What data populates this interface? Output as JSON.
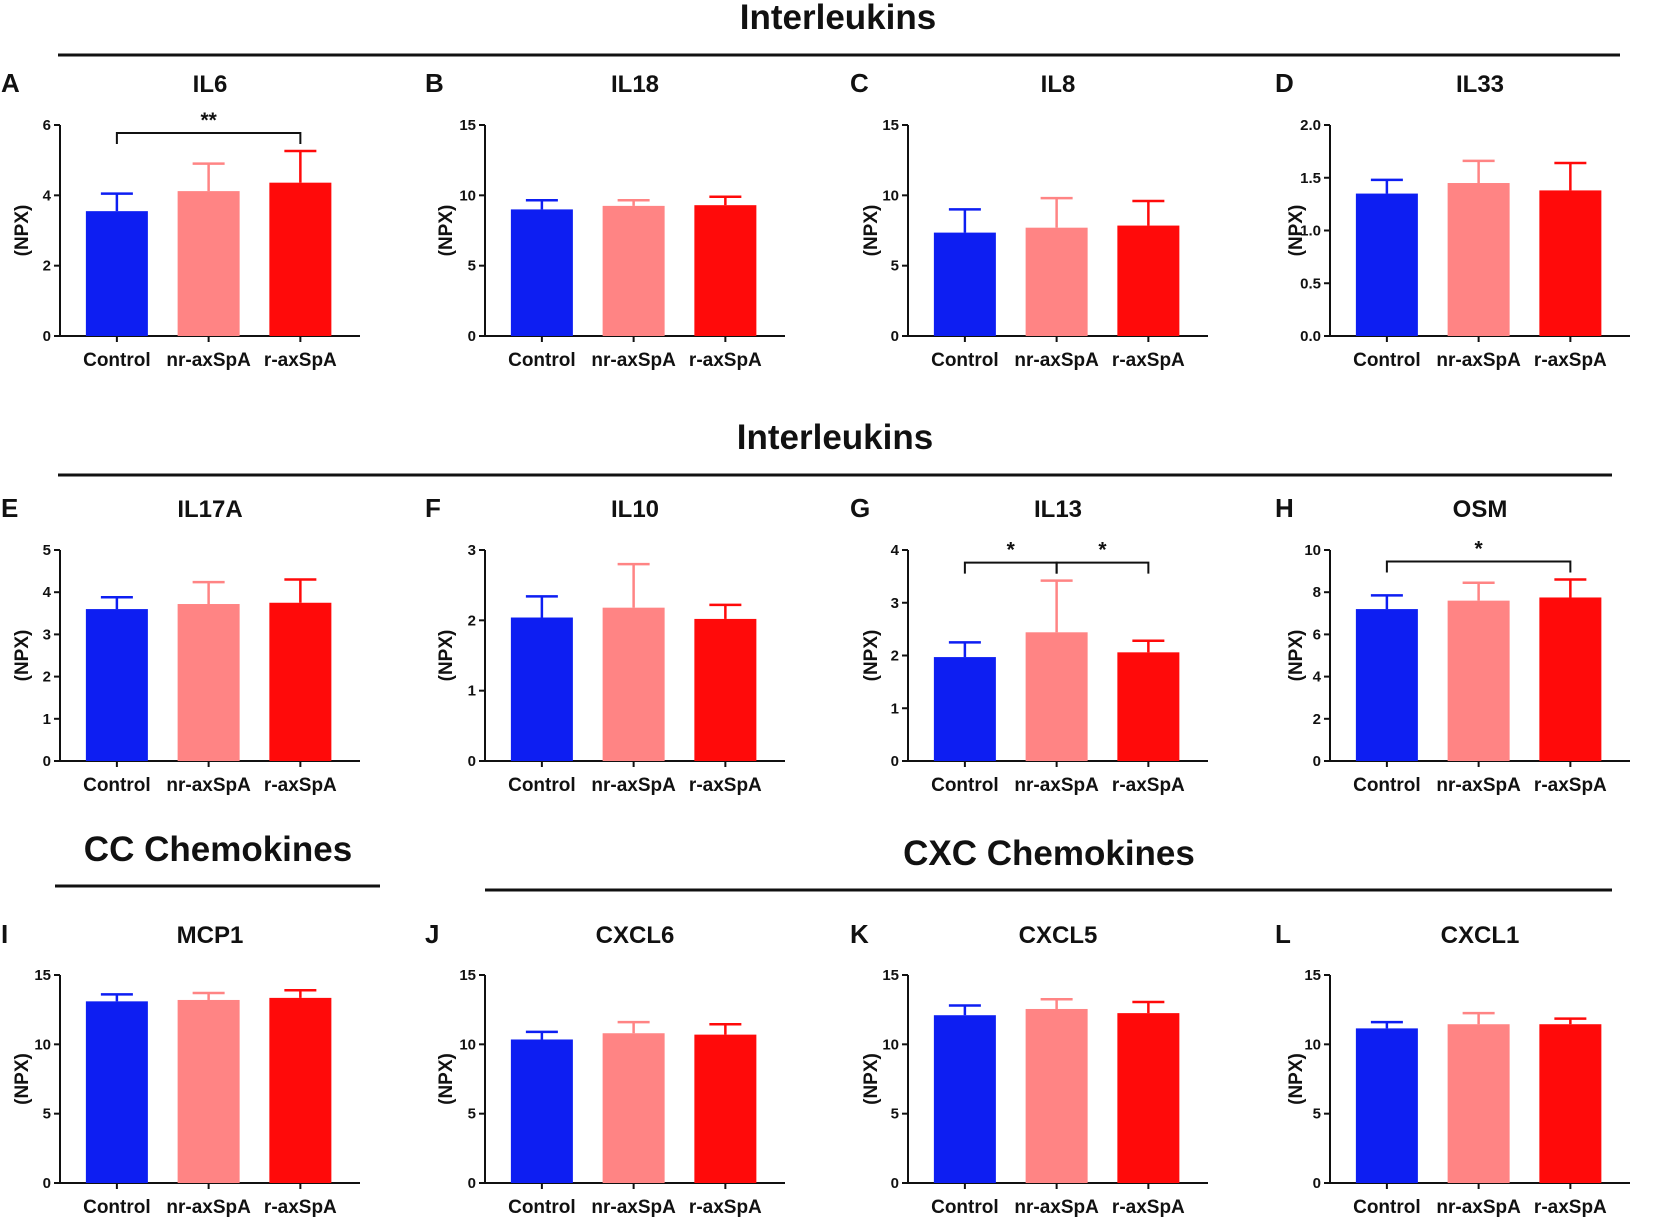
{
  "figure": {
    "sections": [
      {
        "title": "Interleukins"
      },
      {
        "title": "Interleukins"
      },
      {
        "title": "CC Chemokines"
      },
      {
        "title": "CXC Chemokines"
      }
    ]
  },
  "colors": {
    "control": "#0d1ef2",
    "nr_axspa": "#ff8484",
    "r_axspa": "#ff0a0a",
    "axis": "#111111"
  },
  "chart_data": [
    {
      "letter": "A",
      "title": "IL6",
      "type": "bar",
      "categories": [
        "Control",
        "nr-axSpA",
        "r-axSpA"
      ],
      "values": [
        3.55,
        4.12,
        4.36
      ],
      "errors": [
        0.5,
        0.78,
        0.9
      ],
      "ylabel": "(NPX)",
      "ylim": [
        0,
        6
      ],
      "yticks": [
        "0",
        "2",
        "4",
        "6"
      ],
      "significance": [
        {
          "from": 0,
          "to": 2,
          "label": "**"
        }
      ]
    },
    {
      "letter": "B",
      "title": "IL18",
      "type": "bar",
      "categories": [
        "Control",
        "nr-axSpA",
        "r-axSpA"
      ],
      "values": [
        9.0,
        9.25,
        9.3
      ],
      "errors": [
        0.65,
        0.4,
        0.6
      ],
      "ylabel": "(NPX)",
      "ylim": [
        0,
        15
      ],
      "yticks": [
        "0",
        "5",
        "10",
        "15"
      ],
      "significance": []
    },
    {
      "letter": "C",
      "title": "IL8",
      "type": "bar",
      "categories": [
        "Control",
        "nr-axSpA",
        "r-axSpA"
      ],
      "values": [
        7.35,
        7.7,
        7.85
      ],
      "errors": [
        1.65,
        2.1,
        1.75
      ],
      "ylabel": "(NPX)",
      "ylim": [
        0,
        15
      ],
      "yticks": [
        "0",
        "5",
        "10",
        "15"
      ],
      "significance": []
    },
    {
      "letter": "D",
      "title": "IL33",
      "type": "bar",
      "categories": [
        "Control",
        "nr-axSpA",
        "r-axSpA"
      ],
      "values": [
        1.35,
        1.45,
        1.38
      ],
      "errors": [
        0.13,
        0.21,
        0.26
      ],
      "ylabel": "(NPX)",
      "ylim": [
        0,
        2
      ],
      "yticks": [
        "0.0",
        "0.5",
        "1.0",
        "1.5",
        "2.0"
      ],
      "significance": []
    },
    {
      "letter": "E",
      "title": "IL17A",
      "type": "bar",
      "categories": [
        "Control",
        "nr-axSpA",
        "r-axSpA"
      ],
      "values": [
        3.6,
        3.72,
        3.75
      ],
      "errors": [
        0.28,
        0.52,
        0.55
      ],
      "ylabel": "(NPX)",
      "ylim": [
        0,
        5
      ],
      "yticks": [
        "0",
        "1",
        "2",
        "3",
        "4",
        "5"
      ],
      "significance": []
    },
    {
      "letter": "F",
      "title": "IL10",
      "type": "bar",
      "categories": [
        "Control",
        "nr-axSpA",
        "r-axSpA"
      ],
      "values": [
        2.04,
        2.18,
        2.02
      ],
      "errors": [
        0.3,
        0.62,
        0.2
      ],
      "ylabel": "(NPX)",
      "ylim": [
        0,
        3
      ],
      "yticks": [
        "0",
        "1",
        "2",
        "3"
      ],
      "significance": []
    },
    {
      "letter": "G",
      "title": "IL13",
      "type": "bar",
      "categories": [
        "Control",
        "nr-axSpA",
        "r-axSpA"
      ],
      "values": [
        1.97,
        2.44,
        2.06
      ],
      "errors": [
        0.28,
        0.98,
        0.22
      ],
      "ylabel": "(NPX)",
      "ylim": [
        0,
        4
      ],
      "yticks": [
        "0",
        "1",
        "2",
        "3",
        "4"
      ],
      "significance": [
        {
          "from": 0,
          "to": 1,
          "label": "*"
        },
        {
          "from": 1,
          "to": 2,
          "label": "*"
        }
      ]
    },
    {
      "letter": "H",
      "title": "OSM",
      "type": "bar",
      "categories": [
        "Control",
        "nr-axSpA",
        "r-axSpA"
      ],
      "values": [
        7.2,
        7.6,
        7.75
      ],
      "errors": [
        0.65,
        0.85,
        0.85
      ],
      "ylabel": "(NPX)",
      "ylim": [
        0,
        10
      ],
      "yticks": [
        "0",
        "2",
        "4",
        "6",
        "8",
        "10"
      ],
      "significance": [
        {
          "from": 0,
          "to": 2,
          "label": "*"
        }
      ]
    },
    {
      "letter": "I",
      "title": "MCP1",
      "type": "bar",
      "categories": [
        "Control",
        "nr-axSpA",
        "r-axSpA"
      ],
      "values": [
        13.1,
        13.2,
        13.35
      ],
      "errors": [
        0.5,
        0.5,
        0.55
      ],
      "ylabel": "(NPX)",
      "ylim": [
        0,
        15
      ],
      "yticks": [
        "0",
        "5",
        "10",
        "15"
      ],
      "significance": []
    },
    {
      "letter": "J",
      "title": "CXCL6",
      "type": "bar",
      "categories": [
        "Control",
        "nr-axSpA",
        "r-axSpA"
      ],
      "values": [
        10.35,
        10.8,
        10.7
      ],
      "errors": [
        0.55,
        0.8,
        0.75
      ],
      "ylabel": "(NPX)",
      "ylim": [
        0,
        15
      ],
      "yticks": [
        "0",
        "5",
        "10",
        "15"
      ],
      "significance": []
    },
    {
      "letter": "K",
      "title": "CXCL5",
      "type": "bar",
      "categories": [
        "Control",
        "nr-axSpA",
        "r-axSpA"
      ],
      "values": [
        12.1,
        12.55,
        12.25
      ],
      "errors": [
        0.7,
        0.7,
        0.8
      ],
      "ylabel": "(NPX)",
      "ylim": [
        0,
        15
      ],
      "yticks": [
        "0",
        "5",
        "10",
        "15"
      ],
      "significance": []
    },
    {
      "letter": "L",
      "title": "CXCL1",
      "type": "bar",
      "categories": [
        "Control",
        "nr-axSpA",
        "r-axSpA"
      ],
      "values": [
        11.15,
        11.45,
        11.45
      ],
      "errors": [
        0.45,
        0.8,
        0.4
      ],
      "ylabel": "(NPX)",
      "ylim": [
        0,
        15
      ],
      "yticks": [
        "0",
        "5",
        "10",
        "15"
      ],
      "significance": []
    }
  ]
}
